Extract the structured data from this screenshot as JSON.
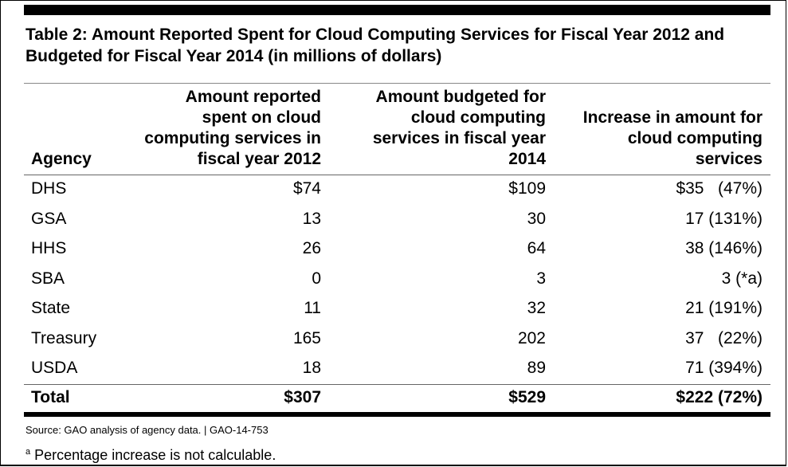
{
  "title": "Table 2: Amount Reported Spent for Cloud Computing Services for Fiscal Year 2012 and Budgeted for Fiscal Year 2014 (in millions of dollars)",
  "columns": [
    "Agency",
    "Amount reported spent on cloud computing services in fiscal year 2012",
    "Amount budgeted for cloud computing services in fiscal year 2014",
    "Increase in amount for cloud computing services"
  ],
  "rows": [
    [
      "DHS",
      "$74",
      "$109",
      "$35   (47%)"
    ],
    [
      "GSA",
      "13",
      "30",
      "17 (131%)"
    ],
    [
      "HHS",
      "26",
      "64",
      "38 (146%)"
    ],
    [
      "SBA",
      "0",
      "3",
      "3 (*a)"
    ],
    [
      "State",
      "11",
      "32",
      "21 (191%)"
    ],
    [
      "Treasury",
      "165",
      "202",
      "37   (22%)"
    ],
    [
      "USDA",
      "18",
      "89",
      "71 (394%)"
    ]
  ],
  "total": [
    "Total",
    "$307",
    "$529",
    "$222 (72%)"
  ],
  "source": "Source: GAO analysis of agency data. | GAO-14-753",
  "footnote_marker": "a",
  "footnote": "Percentage increase is not calculable."
}
